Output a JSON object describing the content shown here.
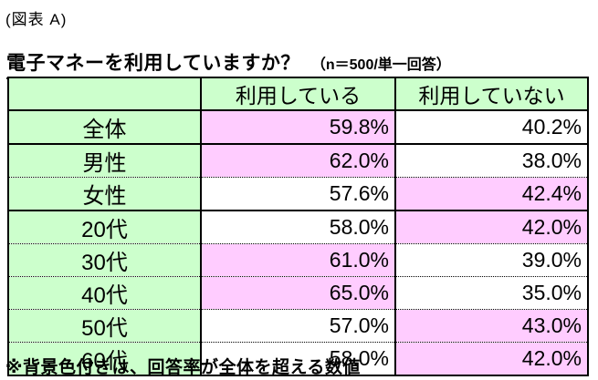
{
  "figure_label": "(図表 A)",
  "title": {
    "question": "電子マネーを利用していますか？",
    "sample_note": "（n＝500/単一回答）"
  },
  "table": {
    "columns": [
      "利用している",
      "利用していない"
    ],
    "rows": [
      {
        "label": "全体",
        "using": "59.8%",
        "not_using": "40.2%",
        "using_highlight": true,
        "not_using_highlight": false
      },
      {
        "label": "男性",
        "using": "62.0%",
        "not_using": "38.0%",
        "using_highlight": true,
        "not_using_highlight": false
      },
      {
        "label": "女性",
        "using": "57.6%",
        "not_using": "42.4%",
        "using_highlight": false,
        "not_using_highlight": true
      },
      {
        "label": "20代",
        "using": "58.0%",
        "not_using": "42.0%",
        "using_highlight": false,
        "not_using_highlight": true
      },
      {
        "label": "30代",
        "using": "61.0%",
        "not_using": "39.0%",
        "using_highlight": true,
        "not_using_highlight": false
      },
      {
        "label": "40代",
        "using": "65.0%",
        "not_using": "35.0%",
        "using_highlight": true,
        "not_using_highlight": false
      },
      {
        "label": "50代",
        "using": "57.0%",
        "not_using": "43.0%",
        "using_highlight": false,
        "not_using_highlight": true
      },
      {
        "label": "60代",
        "using": "58.0%",
        "not_using": "42.0%",
        "using_highlight": false,
        "not_using_highlight": true
      }
    ]
  },
  "note": "※背景色付きは、回答率が全体を超える数値",
  "colors": {
    "header_green": "#ccffcc",
    "highlight_pink": "#ffccff",
    "border": "#000000"
  },
  "chart_data": {
    "type": "table",
    "title": "電子マネーを利用していますか？",
    "sample_note": "（n＝500/単一回答）",
    "categories": [
      "全体",
      "男性",
      "女性",
      "20代",
      "30代",
      "40代",
      "50代",
      "60代"
    ],
    "series": [
      {
        "name": "利用している",
        "values": [
          59.8,
          62.0,
          57.6,
          58.0,
          61.0,
          65.0,
          57.0,
          58.0
        ]
      },
      {
        "name": "利用していない",
        "values": [
          40.2,
          38.0,
          42.4,
          42.0,
          39.0,
          35.0,
          43.0,
          42.0
        ]
      }
    ],
    "unit": "%",
    "highlight_rule": "背景色付きは、回答率が全体を超える数値",
    "highlighted_cells": {
      "利用している": [
        "全体",
        "男性",
        "30代",
        "40代"
      ],
      "利用していない": [
        "女性",
        "20代",
        "50代",
        "60代"
      ]
    }
  }
}
